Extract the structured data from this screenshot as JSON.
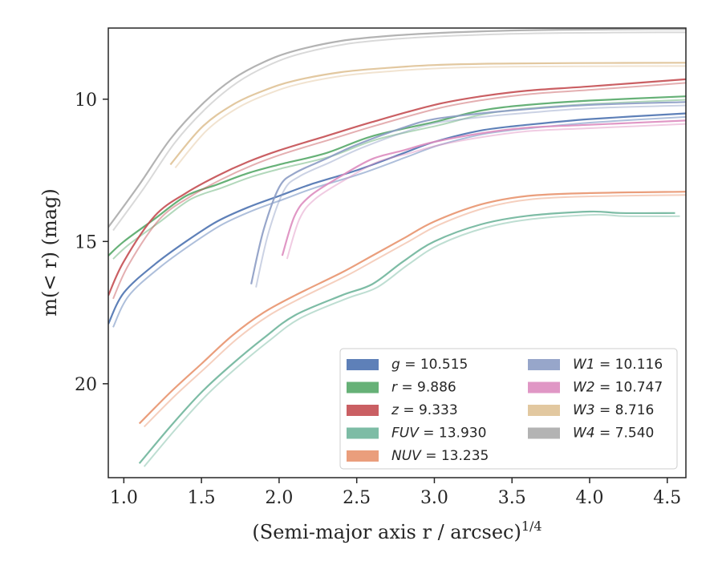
{
  "chart_data": {
    "type": "line",
    "title": "",
    "xlabel": "(Semi-major axis r / arcsec)",
    "xlabel_sup": "1/4",
    "ylabel": "m(< r) (mag)",
    "xlim": [
      0.9,
      4.62
    ],
    "ylim": [
      23.3,
      7.5
    ],
    "y_inverted": true,
    "grid": false,
    "legend_placement": "lower-right",
    "x_ticks": [
      "1.0",
      "1.5",
      "2.0",
      "2.5",
      "3.0",
      "3.5",
      "4.0",
      "4.5"
    ],
    "y_ticks": [
      "10",
      "15",
      "20"
    ],
    "x_tick_values": [
      1.0,
      1.5,
      2.0,
      2.5,
      3.0,
      3.5,
      4.0,
      4.5
    ],
    "y_tick_values": [
      10,
      15,
      20
    ],
    "series": [
      {
        "name": "g = 10.515",
        "legend_var": "g",
        "legend_val": "10.515",
        "color": "#4c72b0",
        "x": [
          0.9,
          1.0,
          1.2,
          1.4,
          1.6,
          1.8,
          2.0,
          2.2,
          2.5,
          2.8,
          3.0,
          3.3,
          3.6,
          4.0,
          4.62
        ],
        "y": [
          17.9,
          16.8,
          15.8,
          15.0,
          14.3,
          13.8,
          13.4,
          13.0,
          12.5,
          11.9,
          11.5,
          11.1,
          10.9,
          10.7,
          10.5
        ]
      },
      {
        "name": "r = 9.886",
        "legend_var": "r",
        "legend_val": "9.886",
        "color": "#55a868",
        "x": [
          0.9,
          1.0,
          1.2,
          1.4,
          1.6,
          1.8,
          2.0,
          2.3,
          2.6,
          3.0,
          3.3,
          3.6,
          4.0,
          4.62
        ],
        "y": [
          15.5,
          15.0,
          14.2,
          13.4,
          13.0,
          12.6,
          12.3,
          11.9,
          11.3,
          10.8,
          10.4,
          10.2,
          10.05,
          9.9
        ]
      },
      {
        "name": "z = 9.333",
        "legend_var": "z",
        "legend_val": "9.333",
        "color": "#c44e52",
        "x": [
          0.9,
          1.0,
          1.2,
          1.4,
          1.6,
          1.8,
          2.0,
          2.3,
          2.6,
          3.0,
          3.3,
          3.6,
          4.0,
          4.62
        ],
        "y": [
          16.9,
          15.7,
          14.1,
          13.3,
          12.7,
          12.2,
          11.8,
          11.3,
          10.8,
          10.2,
          9.9,
          9.7,
          9.55,
          9.3
        ]
      },
      {
        "name": "FUV = 13.930",
        "legend_var": "FUV",
        "legend_val": "13.930",
        "color": "#6fb59b",
        "x": [
          1.1,
          1.3,
          1.5,
          1.7,
          1.9,
          2.1,
          2.4,
          2.6,
          2.8,
          3.0,
          3.3,
          3.6,
          4.0,
          4.2,
          4.55
        ],
        "y": [
          22.8,
          21.5,
          20.3,
          19.3,
          18.4,
          17.6,
          16.9,
          16.5,
          15.7,
          15.0,
          14.4,
          14.1,
          13.95,
          14.0,
          14.0
        ]
      },
      {
        "name": "NUV = 13.235",
        "legend_var": "NUV",
        "legend_val": "13.235",
        "color": "#e8946e",
        "x": [
          1.1,
          1.3,
          1.5,
          1.7,
          1.9,
          2.1,
          2.4,
          2.6,
          2.8,
          3.0,
          3.3,
          3.6,
          4.0,
          4.62
        ],
        "y": [
          21.4,
          20.3,
          19.3,
          18.3,
          17.5,
          16.9,
          16.1,
          15.5,
          14.9,
          14.3,
          13.7,
          13.4,
          13.3,
          13.25
        ]
      },
      {
        "name": "W1 = 10.116",
        "legend_var": "W1",
        "legend_val": "10.116",
        "color": "#8c9cc4",
        "x": [
          1.82,
          1.9,
          2.0,
          2.1,
          2.3,
          2.5,
          2.8,
          3.0,
          3.3,
          3.6,
          4.0,
          4.62
        ],
        "y": [
          16.5,
          14.6,
          13.1,
          12.6,
          12.1,
          11.6,
          11.0,
          10.7,
          10.5,
          10.35,
          10.2,
          10.1
        ]
      },
      {
        "name": "W2 = 10.747",
        "legend_var": "W2",
        "legend_val": "10.747",
        "color": "#dd8cbf",
        "x": [
          2.02,
          2.1,
          2.2,
          2.4,
          2.6,
          2.8,
          3.0,
          3.3,
          3.6,
          4.0,
          4.62
        ],
        "y": [
          15.5,
          14.1,
          13.4,
          12.7,
          12.1,
          11.8,
          11.5,
          11.2,
          11.0,
          10.9,
          10.75
        ]
      },
      {
        "name": "W3 = 8.716",
        "legend_var": "W3",
        "legend_val": "8.716",
        "color": "#dfc296",
        "x": [
          1.3,
          1.5,
          1.7,
          1.9,
          2.1,
          2.4,
          2.7,
          3.0,
          3.4,
          3.9,
          4.62
        ],
        "y": [
          12.3,
          11.0,
          10.2,
          9.7,
          9.35,
          9.05,
          8.9,
          8.8,
          8.75,
          8.73,
          8.72
        ]
      },
      {
        "name": "W4 = 7.540",
        "legend_var": "W4",
        "legend_val": "7.540",
        "color": "#ababab",
        "x": [
          0.9,
          1.1,
          1.3,
          1.5,
          1.7,
          1.9,
          2.1,
          2.4,
          2.7,
          3.0,
          3.4,
          3.8,
          4.4,
          4.62
        ],
        "y": [
          14.5,
          13.0,
          11.4,
          10.2,
          9.3,
          8.7,
          8.3,
          7.95,
          7.78,
          7.68,
          7.6,
          7.56,
          7.54,
          7.54
        ]
      }
    ]
  }
}
